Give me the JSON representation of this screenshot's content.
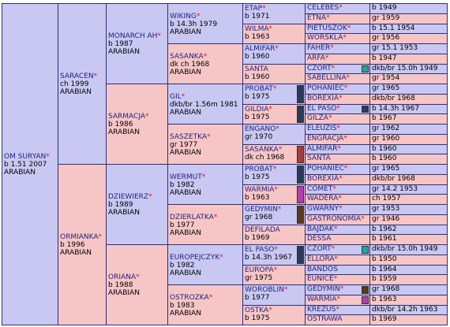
{
  "pedigree": {
    "g1": [
      {
        "name": "OM SURYAN",
        "sex": "m",
        "lines": [
          "b 1.51 2007",
          "ARABIAN"
        ]
      }
    ],
    "g2": [
      {
        "name": "SARACEN",
        "sex": "m",
        "lines": [
          "ch 1999",
          "ARABIAN"
        ]
      },
      {
        "name": "ORMIANKA",
        "sex": "f",
        "lines": [
          "b 1996",
          "ARABIAN"
        ]
      }
    ],
    "g3": [
      {
        "name": "MONARCH AH",
        "sex": "m",
        "lines": [
          "b 1987",
          "ARABIAN"
        ]
      },
      {
        "name": "SARMACJA",
        "sex": "f",
        "lines": [
          "b 1986",
          "ARABIAN"
        ]
      },
      {
        "name": "DZIEWIERZ",
        "sex": "m",
        "lines": [
          "b 1989",
          "ARABIAN"
        ]
      },
      {
        "name": "ORIANA",
        "sex": "f",
        "lines": [
          "b 1988",
          "ARABIAN"
        ]
      }
    ],
    "g4": [
      {
        "name": "WIKING",
        "sex": "m",
        "lines": [
          "b 14.3h 1979",
          "ARABIAN"
        ]
      },
      {
        "name": "SASANKA",
        "sex": "f",
        "lines": [
          "dk ch 1968",
          "ARABIAN"
        ]
      },
      {
        "name": "GIL",
        "sex": "m",
        "lines": [
          "dkb/br 1.56m 1981",
          "ARABIAN"
        ]
      },
      {
        "name": "SASZETKA",
        "sex": "f",
        "lines": [
          "gr 1977",
          "ARABIAN"
        ]
      },
      {
        "name": "WERMUT",
        "sex": "m",
        "lines": [
          "b 1982",
          "ARABIAN"
        ]
      },
      {
        "name": "DZIERLATKA",
        "sex": "f",
        "lines": [
          "b 1977",
          "ARABIAN"
        ]
      },
      {
        "name": "EUROPEJCZYK",
        "sex": "m",
        "lines": [
          "b 1982",
          "ARABIAN"
        ]
      },
      {
        "name": "OSTROZKA",
        "sex": "f",
        "lines": [
          "b 1983",
          "ARABIAN"
        ]
      }
    ],
    "g5": [
      {
        "name": "ETAP",
        "sex": "m",
        "info": "b 1971",
        "star": true
      },
      {
        "name": "WILMA",
        "sex": "f",
        "info": "b 1963",
        "star": true
      },
      {
        "name": "ALMIFAR",
        "sex": "m",
        "info": "b 1960",
        "star": true
      },
      {
        "name": "SANTA",
        "sex": "f",
        "info": "b 1960",
        "star": false
      },
      {
        "name": "PROBAT",
        "sex": "m",
        "info": "b 1975",
        "star": true,
        "swatch": "#2a3a5a"
      },
      {
        "name": "GILDIA",
        "sex": "f",
        "info": "b 1975",
        "star": true,
        "swatch": "#2a3a5a"
      },
      {
        "name": "ENGANO",
        "sex": "m",
        "info": "gr 1970",
        "star": true
      },
      {
        "name": "SASANKA",
        "sex": "f",
        "info": "dk ch 1968",
        "star": true,
        "swatch": "#a04040"
      },
      {
        "name": "PROBAT",
        "sex": "m",
        "info": "b 1975",
        "star": true,
        "swatch": "#2a3a5a"
      },
      {
        "name": "WARMIA",
        "sex": "f",
        "info": "b 1963",
        "star": true,
        "swatch": "#b040b0"
      },
      {
        "name": "GEDYMIN",
        "sex": "m",
        "info": "gr 1968",
        "star": true,
        "swatch": "#5a3a1a"
      },
      {
        "name": "DEFILADA",
        "sex": "f",
        "info": "b 1969",
        "star": false
      },
      {
        "name": "EL PASO",
        "sex": "m",
        "info": "b 14.3h 1967",
        "star": true,
        "swatch": "#2a3a5a"
      },
      {
        "name": "EUROPA",
        "sex": "f",
        "info": "gr 1975",
        "star": true
      },
      {
        "name": "WOROBLIN",
        "sex": "m",
        "info": "b 1977",
        "star": true
      },
      {
        "name": "OSTKA",
        "sex": "f",
        "info": "b 1975",
        "star": true
      }
    ],
    "g6": [
      {
        "name": "CELEBES",
        "sex": "m",
        "info": "b 1949",
        "star": true
      },
      {
        "name": "ETNA",
        "sex": "f",
        "info": "gr 1959",
        "star": true
      },
      {
        "name": "PIETUSZOK",
        "sex": "m",
        "info": "b 15.1 1954",
        "star": true
      },
      {
        "name": "WORSKLA",
        "sex": "f",
        "info": "gr 1956",
        "star": true
      },
      {
        "name": "FAHER",
        "sex": "m",
        "info": "gr 15.1 1953",
        "star": true
      },
      {
        "name": "ARFA",
        "sex": "f",
        "info": "b 1947",
        "star": true
      },
      {
        "name": "CZORT",
        "sex": "m",
        "info": "dkb/br 15.0h 1949",
        "star": true,
        "swatch": "#20a890"
      },
      {
        "name": "SABELLINA",
        "sex": "f",
        "info": "gr 1954",
        "star": true
      },
      {
        "name": "POHANIEC",
        "sex": "m",
        "info": "gr 1965",
        "star": true
      },
      {
        "name": "BOREXIA",
        "sex": "f",
        "info": "dkb/br 1968",
        "star": true
      },
      {
        "name": "EL PASO",
        "sex": "m",
        "info": "b 14.3h 1967",
        "star": true,
        "swatch": "#2a3a5a"
      },
      {
        "name": "GILZA",
        "sex": "f",
        "info": "b 1967",
        "star": true
      },
      {
        "name": "ELEUZIS",
        "sex": "m",
        "info": "gr 1962",
        "star": true
      },
      {
        "name": "ENGRACJA",
        "sex": "f",
        "info": "gr 1960",
        "star": true
      },
      {
        "name": "ALMIFAR",
        "sex": "m",
        "info": "b 1960",
        "star": true
      },
      {
        "name": "SANTA",
        "sex": "f",
        "info": "b 1960",
        "star": false
      },
      {
        "name": "POHANIEC",
        "sex": "m",
        "info": "gr 1965",
        "star": true
      },
      {
        "name": "BOREXIA",
        "sex": "f",
        "info": "dkb/br 1968",
        "star": true
      },
      {
        "name": "COMET",
        "sex": "m",
        "info": "gr 14.2 1953",
        "star": true
      },
      {
        "name": "WADERA",
        "sex": "f",
        "info": "ch 1957",
        "star": true
      },
      {
        "name": "GWARNY",
        "sex": "m",
        "info": "gr 1953",
        "star": true
      },
      {
        "name": "GASTRONOMIA",
        "sex": "f",
        "info": "gr 1946",
        "star": true
      },
      {
        "name": "BAJDAK",
        "sex": "m",
        "info": "b 1962",
        "star": true
      },
      {
        "name": "DESSA",
        "sex": "f",
        "info": "b 1961",
        "star": false
      },
      {
        "name": "CZORT",
        "sex": "m",
        "info": "dkb/br 15.0h 1949",
        "star": true,
        "swatch": "#20a890"
      },
      {
        "name": "ELLORA",
        "sex": "f",
        "info": "b 1950",
        "star": true
      },
      {
        "name": "BANDOS",
        "sex": "m",
        "info": "b 1964",
        "star": false
      },
      {
        "name": "EUNICE",
        "sex": "f",
        "info": "b 1959",
        "star": true
      },
      {
        "name": "GEDYMIN",
        "sex": "m",
        "info": "gr 1968",
        "star": true,
        "swatch": "#5a3a1a"
      },
      {
        "name": "WARMIA",
        "sex": "f",
        "info": "b 1963",
        "star": true,
        "swatch": "#b040b0"
      },
      {
        "name": "KREZUS",
        "sex": "m",
        "info": "dkb/br 14.2h 1963",
        "star": true
      },
      {
        "name": "OSTRAWA",
        "sex": "f",
        "info": "b 1969",
        "star": false
      }
    ]
  },
  "colors": {
    "male": "#c8c8f2",
    "female": "#f6c6c6",
    "name": "#1f1f80",
    "star": "#e01818"
  },
  "icons": {
    "star_marker": "asterisk-icon",
    "inbreeding_swatch": "color-swatch-icon"
  }
}
